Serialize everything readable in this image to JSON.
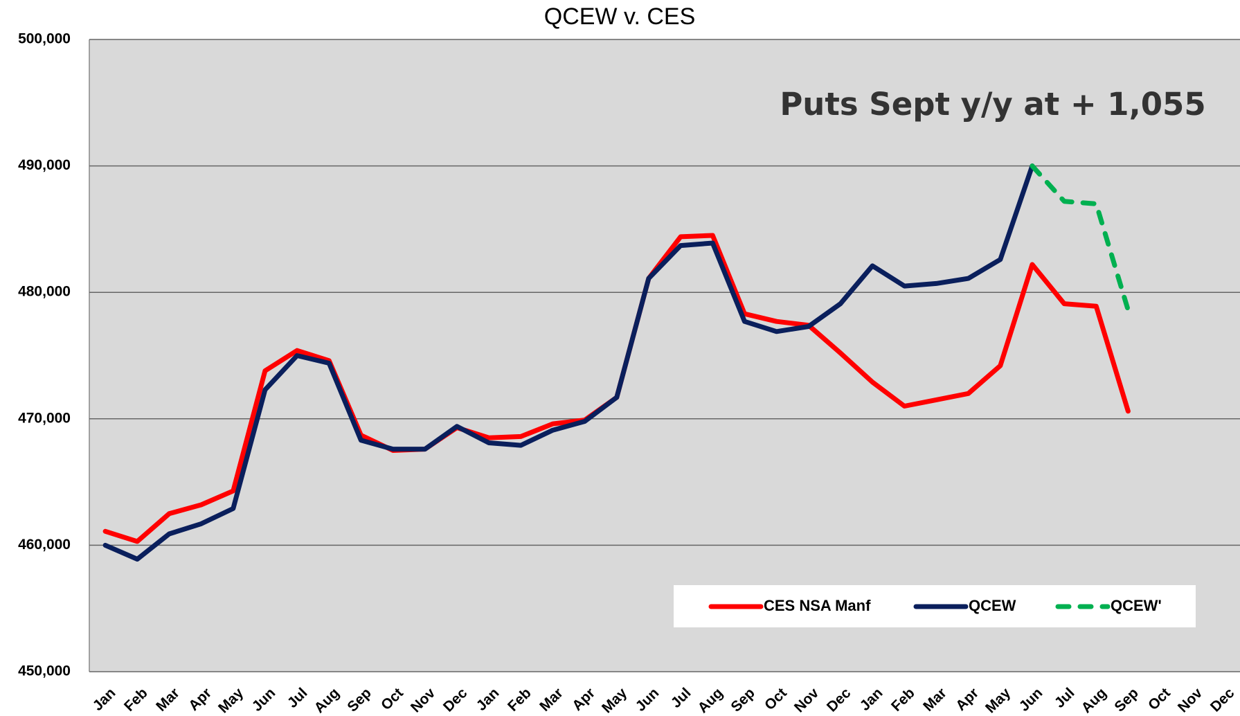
{
  "chart_data": {
    "type": "line",
    "title": "QCEW v. CES",
    "annotation": "Puts Sept y/y at + 1,055",
    "categories": [
      "Jan",
      "Feb",
      "Mar",
      "Apr",
      "May",
      "Jun",
      "Jul",
      "Aug",
      "Sep",
      "Oct",
      "Nov",
      "Dec",
      "Jan",
      "Feb",
      "Mar",
      "Apr",
      "May",
      "Jun",
      "Jul",
      "Aug",
      "Sep",
      "Oct",
      "Nov",
      "Dec",
      "Jan",
      "Feb",
      "Mar",
      "Apr",
      "May",
      "Jun",
      "Jul",
      "Aug",
      "Sep",
      "Oct",
      "Nov",
      "Dec"
    ],
    "series": [
      {
        "name": "CES NSA Manf",
        "color": "#ff0000",
        "dashed": false,
        "values": [
          461100,
          460300,
          462500,
          463200,
          464300,
          473800,
          475400,
          474600,
          468700,
          467500,
          467600,
          469300,
          468500,
          468600,
          469600,
          469900,
          471700,
          481100,
          484400,
          484500,
          478300,
          477700,
          477400,
          475200,
          472900,
          471000,
          471500,
          472000,
          474200,
          482200,
          479100,
          478900,
          470600,
          null,
          null,
          null
        ]
      },
      {
        "name": "QCEW",
        "color": "#0a1f5c",
        "dashed": false,
        "values": [
          460000,
          458900,
          460900,
          461700,
          462900,
          472300,
          475000,
          474400,
          468300,
          467600,
          467600,
          469400,
          468100,
          467900,
          469100,
          469800,
          471700,
          481100,
          483700,
          483900,
          477700,
          476900,
          477300,
          479100,
          482100,
          480500,
          480700,
          481100,
          482600,
          490000,
          null,
          null,
          null,
          null,
          null,
          null
        ]
      },
      {
        "name": "QCEW'",
        "color": "#00b050",
        "dashed": true,
        "values": [
          null,
          null,
          null,
          null,
          null,
          null,
          null,
          null,
          null,
          null,
          null,
          null,
          null,
          null,
          null,
          null,
          null,
          null,
          null,
          null,
          null,
          null,
          null,
          null,
          null,
          null,
          null,
          null,
          null,
          490000,
          487200,
          487000,
          478600,
          null,
          null,
          null
        ]
      }
    ],
    "ylim": [
      450000,
      500000
    ],
    "yticks": [
      {
        "value": 450000,
        "label": "450,000"
      },
      {
        "value": 460000,
        "label": "460,000"
      },
      {
        "value": 470000,
        "label": "470,000"
      },
      {
        "value": 480000,
        "label": "480,000"
      },
      {
        "value": 490000,
        "label": "490,000"
      },
      {
        "value": 500000,
        "label": "500,000"
      }
    ],
    "grid": true,
    "legend": "bottom-right"
  }
}
